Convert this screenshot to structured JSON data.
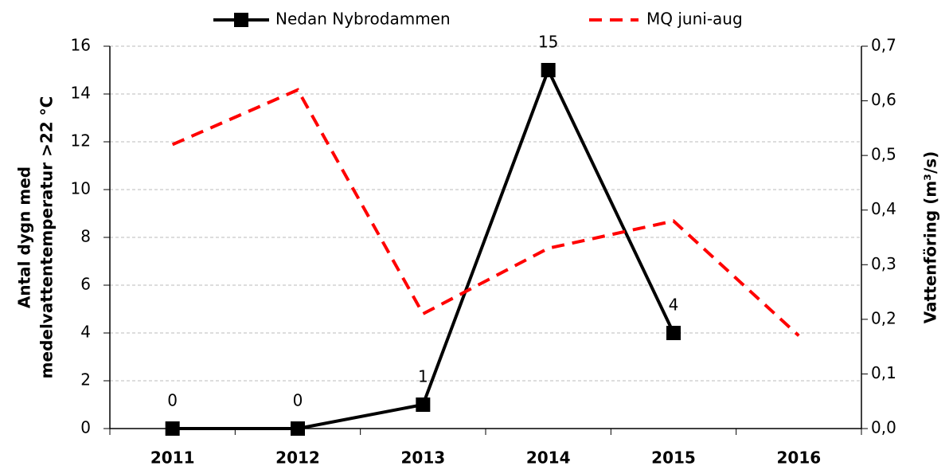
{
  "chart_data": {
    "type": "line",
    "categories": [
      "2011",
      "2012",
      "2013",
      "2014",
      "2015",
      "2016"
    ],
    "series": [
      {
        "name": "Nedan Nybrodammen",
        "color": "#000000",
        "values": [
          0,
          0,
          1,
          15,
          4,
          null
        ]
      },
      {
        "name": "MQ juni-aug",
        "color": "#ff0000",
        "axis": "y2",
        "values": [
          0.52,
          0.62,
          0.21,
          0.33,
          0.38,
          0.17
        ]
      }
    ],
    "ylabel": [
      "Antal dygn med",
      "medelvattentemperatur >22 °C"
    ],
    "y2label": "Vattenföring (m³/s)",
    "ylim": [
      0,
      16
    ],
    "yticks": [
      0,
      2,
      4,
      6,
      8,
      10,
      12,
      14,
      16
    ],
    "y2lim": [
      0,
      0.7
    ],
    "y2ticks": [
      {
        "value": 0,
        "label": "0,0"
      },
      {
        "value": 0.1,
        "label": "0,1"
      },
      {
        "value": 0.2,
        "label": "0,2"
      },
      {
        "value": 0.3,
        "label": "0,3"
      },
      {
        "value": 0.4,
        "label": "0,4"
      },
      {
        "value": 0.5,
        "label": "0,5"
      },
      {
        "value": 0.6,
        "label": "0,6"
      },
      {
        "value": 0.7,
        "label": "0,7"
      }
    ],
    "grid": true,
    "legend": "top"
  }
}
